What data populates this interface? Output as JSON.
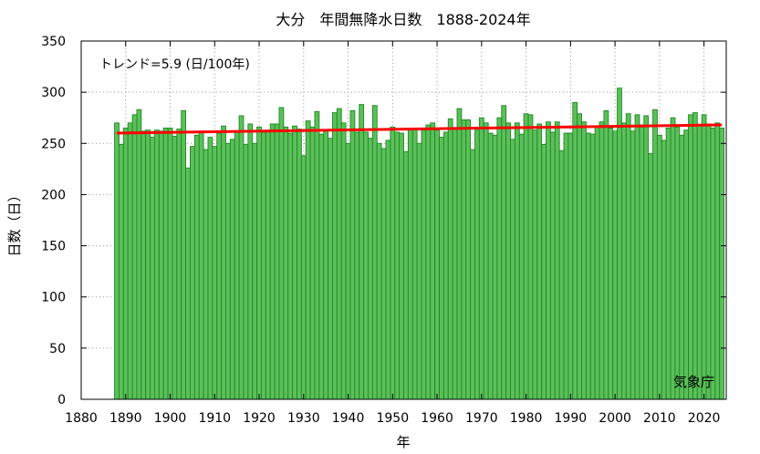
{
  "chart_data": {
    "type": "bar",
    "title": "大分　年間無降水日数　1888-2024年",
    "xlabel": "年",
    "ylabel": "日数（日）",
    "annotation": "トレンド=5.9 (日/100年)",
    "credit": "気象庁",
    "xlim": [
      1880,
      2025
    ],
    "ylim": [
      0,
      350
    ],
    "x_ticks": [
      1880,
      1890,
      1900,
      1910,
      1920,
      1930,
      1940,
      1950,
      1960,
      1970,
      1980,
      1990,
      2000,
      2010,
      2020
    ],
    "y_ticks": [
      0,
      50,
      100,
      150,
      200,
      250,
      300,
      350
    ],
    "grid": true,
    "bar_color": "#5cbf5c",
    "bar_edge_color": "#1e8a1e",
    "trend_color": "#ff0000",
    "start_year": 1888,
    "values": [
      270,
      249,
      265,
      270,
      278,
      283,
      262,
      263,
      256,
      263,
      262,
      265,
      265,
      257,
      264,
      282,
      226,
      247,
      258,
      262,
      244,
      256,
      247,
      260,
      267,
      250,
      254,
      262,
      277,
      249,
      269,
      250,
      266,
      261,
      262,
      269,
      269,
      285,
      266,
      260,
      267,
      264,
      238,
      272,
      266,
      281,
      259,
      262,
      255,
      280,
      284,
      270,
      250,
      282,
      261,
      288,
      261,
      255,
      287,
      250,
      245,
      253,
      266,
      261,
      260,
      242,
      264,
      264,
      250,
      263,
      268,
      270,
      263,
      256,
      261,
      274,
      265,
      284,
      273,
      273,
      244,
      263,
      275,
      270,
      260,
      258,
      275,
      287,
      270,
      254,
      270,
      259,
      279,
      278,
      263,
      269,
      249,
      271,
      261,
      271,
      243,
      260,
      260,
      290,
      279,
      271,
      260,
      259,
      266,
      271,
      282,
      265,
      262,
      304,
      270,
      279,
      262,
      278,
      268,
      277,
      240,
      283,
      258,
      253,
      265,
      275,
      266,
      258,
      263,
      278,
      280,
      268,
      278,
      269,
      265,
      270,
      265
    ],
    "trend": {
      "start_value": 260.1,
      "end_value": 268.1
    }
  }
}
